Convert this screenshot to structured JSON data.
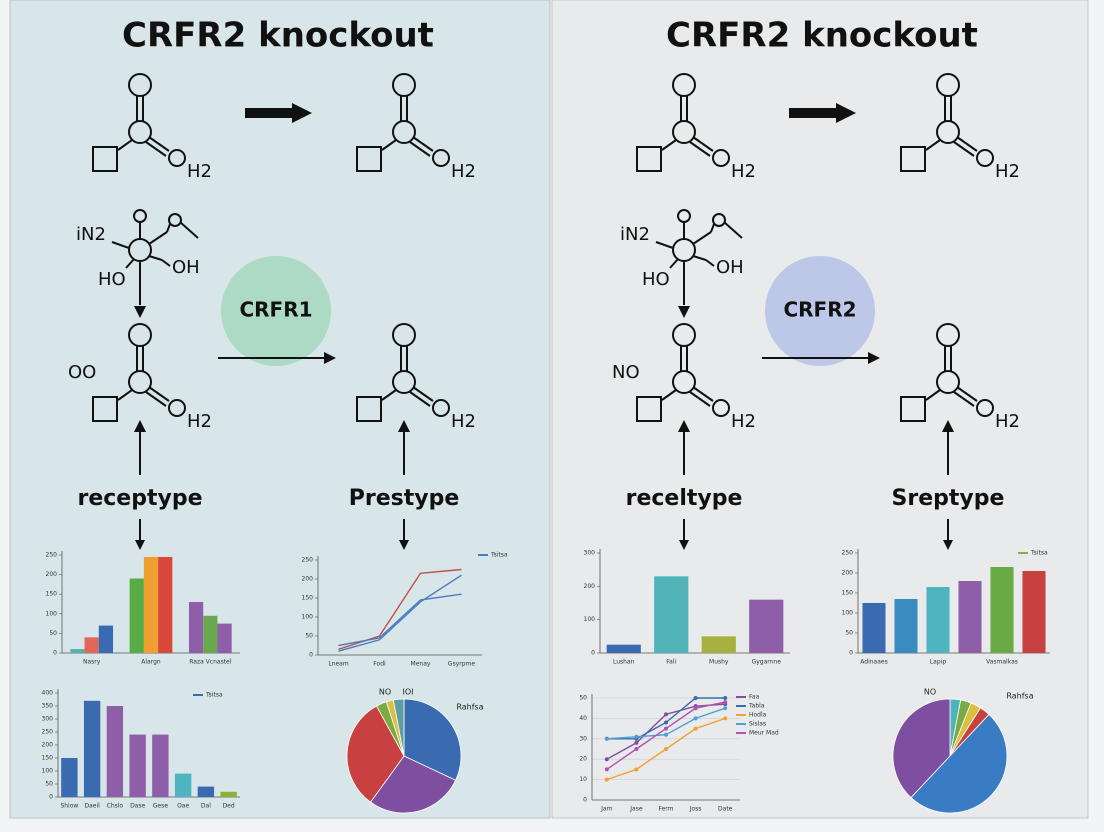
{
  "panels": [
    {
      "title": "CRFR2 knockout",
      "enzyme": "CRFR1",
      "texts": {
        "h2": "H2",
        "in2": "iN2",
        "ho": "HO",
        "oh": "OH",
        "side": "OO"
      },
      "types": [
        "receptype",
        "Prestype"
      ],
      "charts": [
        {
          "type": "bar",
          "categories": [
            "Nasry",
            "Alargn",
            "Raza Vcnastel"
          ],
          "series": [
            {
              "colors": [
                "#4fb3b0",
                "#5aaa46",
                "#8e5ea8"
              ],
              "values": [
                10,
                190,
                130
              ]
            },
            {
              "colors": [
                "#e0675a",
                "#f0a030",
                "#6aa84f"
              ],
              "values": [
                40,
                245,
                95
              ]
            },
            {
              "colors": [
                "#3a6ab0",
                "#d9483b",
                "#8e5ea8"
              ],
              "values": [
                70,
                245,
                75
              ]
            }
          ],
          "ylim": [
            0,
            250
          ],
          "yticks": [
            0,
            50,
            100,
            150,
            200,
            250
          ]
        },
        {
          "type": "line",
          "categories": [
            "Lneam",
            "Fodi",
            "Menay",
            "Gsyrpme"
          ],
          "series": [
            {
              "name": "Tsitsa",
              "color": "#4a7cc0",
              "values": [
                10,
                40,
                140,
                210
              ]
            },
            {
              "color": "#c0504d",
              "values": [
                15,
                50,
                215,
                225
              ]
            },
            {
              "color": "#4a7cc0",
              "values": [
                25,
                45,
                145,
                160
              ]
            }
          ],
          "ylim": [
            0,
            250
          ],
          "yticks": [
            0,
            50,
            100,
            150,
            200,
            250
          ]
        },
        {
          "type": "bar",
          "categories": [
            "Shiow",
            "Daeil",
            "Chslo",
            "Dase",
            "Gese",
            "Oae",
            "Dal",
            "Ded"
          ],
          "series": [
            {
              "name": "Tsitsa",
              "color": "#3a6ab0",
              "colors": [
                "#3a6ab0",
                "#3a6ab0",
                "#8e5ea8",
                "#8e5ea8",
                "#8e5ea8",
                "#4fb3c0",
                "#3a6ab0",
                "#8cb030"
              ],
              "values": [
                150,
                370,
                350,
                240,
                240,
                90,
                40,
                20
              ]
            }
          ],
          "ylim": [
            0,
            400
          ],
          "yticks": [
            0,
            50,
            100,
            150,
            200,
            250,
            300,
            350,
            400
          ]
        },
        {
          "type": "pie",
          "values": [
            32,
            28,
            32,
            3,
            2,
            3
          ],
          "colors": [
            "#3a6ab0",
            "#7e4fa0",
            "#c94040",
            "#7aaa44",
            "#d8c040",
            "#5f9ea0"
          ],
          "annotations": [
            "NO",
            "IOI",
            "Rahfsa"
          ]
        }
      ]
    },
    {
      "title": "CRFR2 knockout",
      "enzyme": "CRFR2",
      "texts": {
        "h2": "H2",
        "in2": "iN2",
        "ho": "HO",
        "oh": "OH",
        "side": "NO"
      },
      "types": [
        "receltype",
        "Sreptype"
      ],
      "charts": [
        {
          "type": "bar",
          "categories": [
            "Lushan",
            "Fali",
            "Mushy",
            "Gygarnne"
          ],
          "series": [
            {
              "colors": [
                "#3a6ab0",
                "#4fb3b8",
                "#a8b040",
                "#8e5ea8"
              ],
              "values": [
                25,
                230,
                50,
                160
              ]
            }
          ],
          "ylim": [
            0,
            300
          ],
          "yticks": [
            0,
            100,
            200,
            300
          ]
        },
        {
          "type": "bar",
          "categories": [
            "Adinaaes",
            null,
            "Lapip",
            null,
            "Vasmalkas",
            null
          ],
          "series": [
            {
              "name": "Tsitsa",
              "color": "#8cb030",
              "colors": [
                "#3a6ab0",
                "#3a8cc0",
                "#4fb3c0",
                "#8e5ea8",
                "#6aaa44",
                "#c94040"
              ],
              "values": [
                125,
                135,
                165,
                180,
                215,
                205
              ]
            }
          ],
          "ylim": [
            0,
            250
          ],
          "yticks": [
            0,
            50,
            100,
            150,
            200,
            250
          ]
        },
        {
          "type": "line",
          "categories": [
            "Jam",
            "Jase",
            "Ferm",
            "Joss",
            "Date"
          ],
          "grid": true,
          "markers": true,
          "series": [
            {
              "name": "Faa",
              "color": "#7e4fa0",
              "values": [
                20,
                28,
                42,
                46,
                47
              ]
            },
            {
              "name": "Tabla",
              "color": "#3a6ab0",
              "values": [
                30,
                30,
                38,
                50,
                50
              ]
            },
            {
              "name": "Hodla",
              "color": "#f0a030",
              "values": [
                10,
                15,
                25,
                35,
                40
              ]
            },
            {
              "name": "Sislas",
              "color": "#4fa0d0",
              "values": [
                30,
                31,
                32,
                40,
                45
              ]
            },
            {
              "name": "Meur Mad",
              "color": "#b050b0",
              "values": [
                15,
                25,
                35,
                45,
                48
              ]
            }
          ],
          "ylim": [
            0,
            50
          ],
          "yticks": [
            0,
            10,
            20,
            30,
            40,
            50
          ]
        },
        {
          "type": "pie",
          "values": [
            3,
            3,
            3,
            3,
            50,
            38
          ],
          "colors": [
            "#4fb3b8",
            "#7aaa44",
            "#d8c040",
            "#c94040",
            "#3a7cc4",
            "#7e4fa0"
          ],
          "annotations": [
            "NO",
            "Rahfsa"
          ]
        }
      ]
    }
  ]
}
